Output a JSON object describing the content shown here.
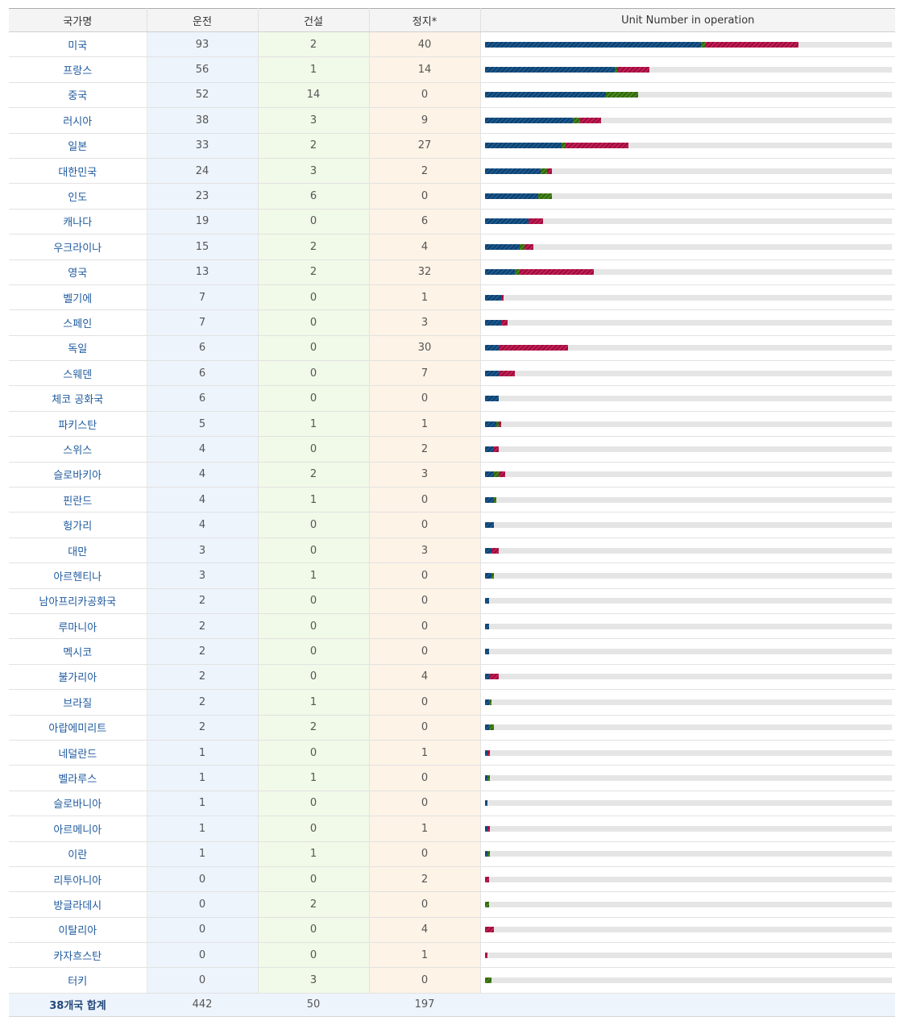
{
  "table": {
    "headers": {
      "country": "국가명",
      "operation": "운전",
      "construction": "건설",
      "stopped": "정지*",
      "chart": "Unit Number in operation"
    },
    "total": {
      "label": "38개국 합계",
      "operation": "442",
      "construction": "50",
      "stopped": "197"
    }
  },
  "colors": {
    "operation": "#1d5a8e",
    "construction": "#4c8a1c",
    "stopped": "#c81e56",
    "track": "#e5e5e5"
  },
  "chart_data": {
    "type": "bar",
    "orientation": "horizontal",
    "stacked": true,
    "title": "Unit Number in operation",
    "xlim": [
      0,
      175
    ],
    "categories": [
      "미국",
      "프랑스",
      "중국",
      "러시아",
      "일본",
      "대한민국",
      "인도",
      "캐나다",
      "우크라이나",
      "영국",
      "벨기에",
      "스페인",
      "독일",
      "스웨덴",
      "체코 공화국",
      "파키스탄",
      "스위스",
      "슬로바키아",
      "핀란드",
      "헝가리",
      "대만",
      "아르헨티나",
      "남아프리카공화국",
      "루마니아",
      "멕시코",
      "불가리아",
      "브라질",
      "아랍에미리트",
      "네덜란드",
      "벨라루스",
      "슬로바니아",
      "아르메니아",
      "이란",
      "리투아니아",
      "방글라데시",
      "이탈리아",
      "카자흐스탄",
      "터키"
    ],
    "series": [
      {
        "name": "운전",
        "values": [
          93,
          56,
          52,
          38,
          33,
          24,
          23,
          19,
          15,
          13,
          7,
          7,
          6,
          6,
          6,
          5,
          4,
          4,
          4,
          4,
          3,
          3,
          2,
          2,
          2,
          2,
          2,
          2,
          1,
          1,
          1,
          1,
          1,
          0,
          0,
          0,
          0,
          0
        ]
      },
      {
        "name": "건설",
        "values": [
          2,
          1,
          14,
          3,
          2,
          3,
          6,
          0,
          2,
          2,
          0,
          0,
          0,
          0,
          0,
          1,
          0,
          2,
          1,
          0,
          0,
          1,
          0,
          0,
          0,
          0,
          1,
          2,
          0,
          1,
          0,
          0,
          1,
          0,
          2,
          0,
          0,
          3
        ]
      },
      {
        "name": "정지*",
        "values": [
          40,
          14,
          0,
          9,
          27,
          2,
          0,
          6,
          4,
          32,
          1,
          3,
          30,
          7,
          0,
          1,
          2,
          3,
          0,
          0,
          3,
          0,
          0,
          0,
          0,
          4,
          0,
          0,
          1,
          0,
          0,
          1,
          0,
          2,
          0,
          4,
          1,
          0
        ]
      }
    ]
  }
}
